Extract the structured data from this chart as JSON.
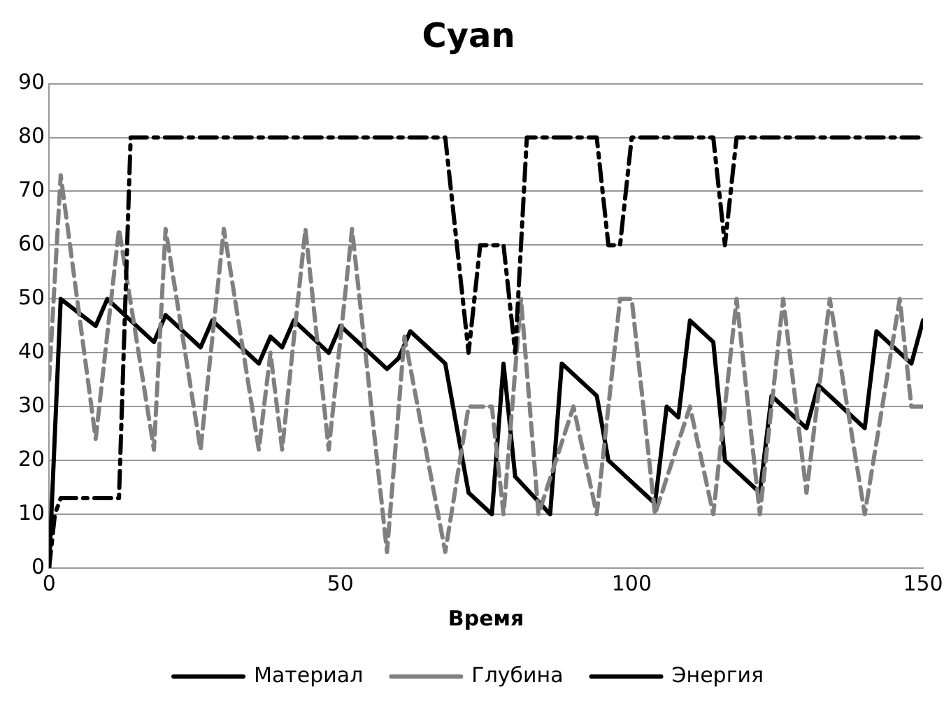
{
  "chart_data": {
    "type": "line",
    "title": "Cyan",
    "xlabel": "Время",
    "xlim": [
      0,
      150
    ],
    "xticks": [
      0,
      50,
      100,
      150
    ],
    "ylim": [
      0,
      90
    ],
    "yticks": [
      0,
      10,
      20,
      30,
      40,
      50,
      60,
      70,
      80,
      90
    ],
    "grid": "y",
    "legend": "bottom",
    "marker": "none",
    "series": [
      {
        "name": "Материал",
        "color": "#000000",
        "line_style": "dashdot",
        "x": [
          0,
          1,
          2,
          12,
          14,
          68,
          72,
          74,
          78,
          80,
          82,
          94,
          96,
          98,
          100,
          114,
          116,
          118,
          150
        ],
        "values": [
          0,
          10,
          13,
          13,
          80,
          80,
          40,
          60,
          60,
          40,
          80,
          80,
          60,
          60,
          80,
          80,
          60,
          80,
          80
        ]
      },
      {
        "name": "Глубина",
        "color": "#808080",
        "line_style": "dashed",
        "x": [
          0,
          2,
          8,
          12,
          18,
          20,
          26,
          30,
          36,
          38,
          40,
          44,
          48,
          52,
          58,
          61,
          68,
          72,
          76,
          78,
          81,
          84,
          90,
          94,
          98,
          100,
          104,
          110,
          114,
          118,
          122,
          126,
          130,
          134,
          140,
          146,
          148,
          150
        ],
        "values": [
          35,
          73,
          24,
          63,
          22,
          63,
          22,
          63,
          22,
          40,
          22,
          63,
          22,
          63,
          3,
          43,
          3,
          30,
          30,
          10,
          50,
          10,
          30,
          10,
          50,
          50,
          10,
          30,
          10,
          50,
          10,
          50,
          14,
          50,
          10,
          50,
          30,
          30
        ]
      },
      {
        "name": "Энергия",
        "color": "#000000",
        "line_style": "solid",
        "x": [
          0,
          2,
          8,
          10,
          18,
          20,
          26,
          28,
          36,
          38,
          40,
          42,
          48,
          50,
          58,
          60,
          62,
          68,
          72,
          76,
          78,
          80,
          86,
          88,
          94,
          96,
          104,
          106,
          108,
          110,
          114,
          116,
          122,
          124,
          130,
          132,
          140,
          142,
          148,
          150
        ],
        "values": [
          0,
          50,
          45,
          50,
          42,
          47,
          41,
          46,
          38,
          43,
          41,
          46,
          40,
          45,
          37,
          39,
          44,
          38,
          14,
          10,
          38,
          17,
          10,
          38,
          32,
          20,
          12,
          30,
          28,
          46,
          42,
          20,
          14,
          32,
          26,
          34,
          26,
          44,
          38,
          46
        ]
      }
    ]
  }
}
